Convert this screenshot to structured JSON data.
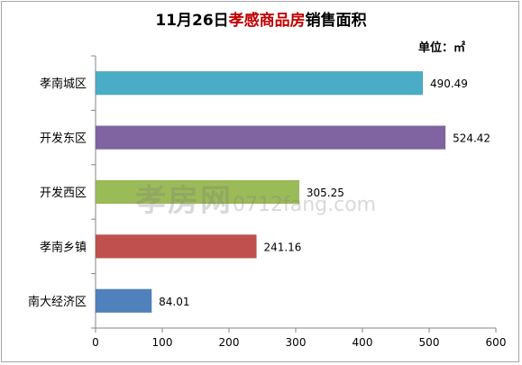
{
  "chart_data": {
    "type": "bar",
    "orientation": "horizontal",
    "title_prefix": "11月26日",
    "title_highlight": "孝感商品房",
    "title_suffix": "销售面积",
    "unit": "单位：㎡",
    "categories": [
      "孝南城区",
      "开发东区",
      "开发西区",
      "孝南乡镇",
      "南大经济区"
    ],
    "values": [
      490.49,
      524.42,
      305.25,
      241.16,
      84.01
    ],
    "value_labels": [
      "490.49",
      "524.42",
      "305.25",
      "241.16",
      "84.01"
    ],
    "colors": [
      "#4bacc6",
      "#8064a2",
      "#9bbb59",
      "#c0504d",
      "#4f81bd"
    ],
    "xlim": [
      0,
      600
    ],
    "xticks": [
      "0",
      "100",
      "200",
      "300",
      "400",
      "500",
      "600"
    ],
    "grid": false,
    "legend": "none"
  },
  "watermark": {
    "brand": "孝房网",
    "site": "0712fang.com"
  }
}
